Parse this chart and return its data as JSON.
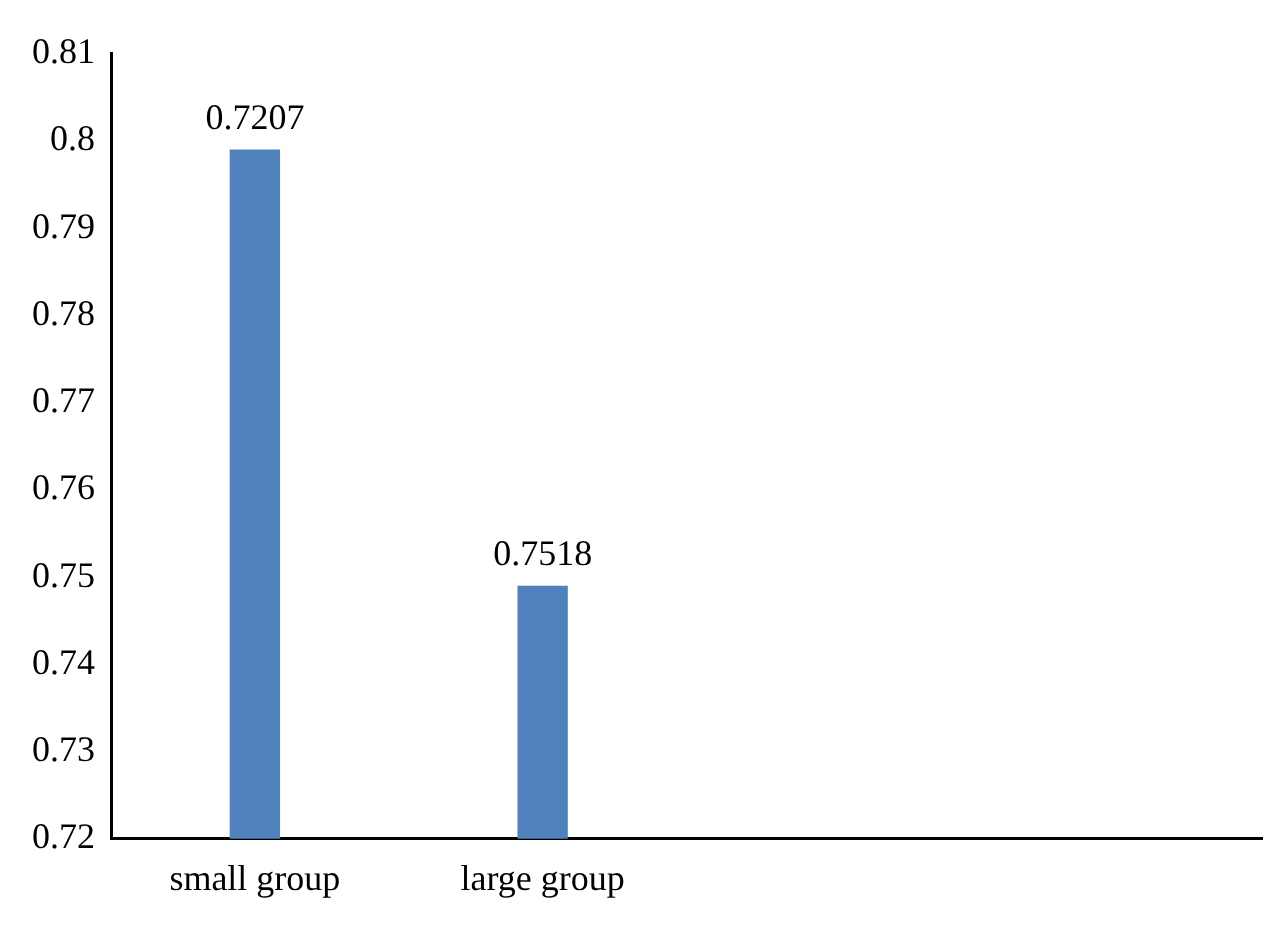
{
  "chart_data": {
    "type": "bar",
    "categories": [
      "small group",
      "large group",
      null,
      null
    ],
    "values": [
      0.799,
      0.749,
      null,
      null
    ],
    "annotations": [
      {
        "text": "0.7207",
        "x": "small group",
        "y": 0.799
      },
      {
        "text": "0.7518",
        "x": "large group",
        "y": 0.749
      }
    ],
    "color": "#4f81bd",
    "ylim": [
      0.72,
      0.81
    ],
    "yticks": [
      0.72,
      0.73,
      0.74,
      0.75,
      0.76,
      0.77,
      0.78,
      0.79,
      {
        "value": 0.8,
        "label": "0.8"
      },
      0.81
    ],
    "grid": false,
    "legend": false
  }
}
